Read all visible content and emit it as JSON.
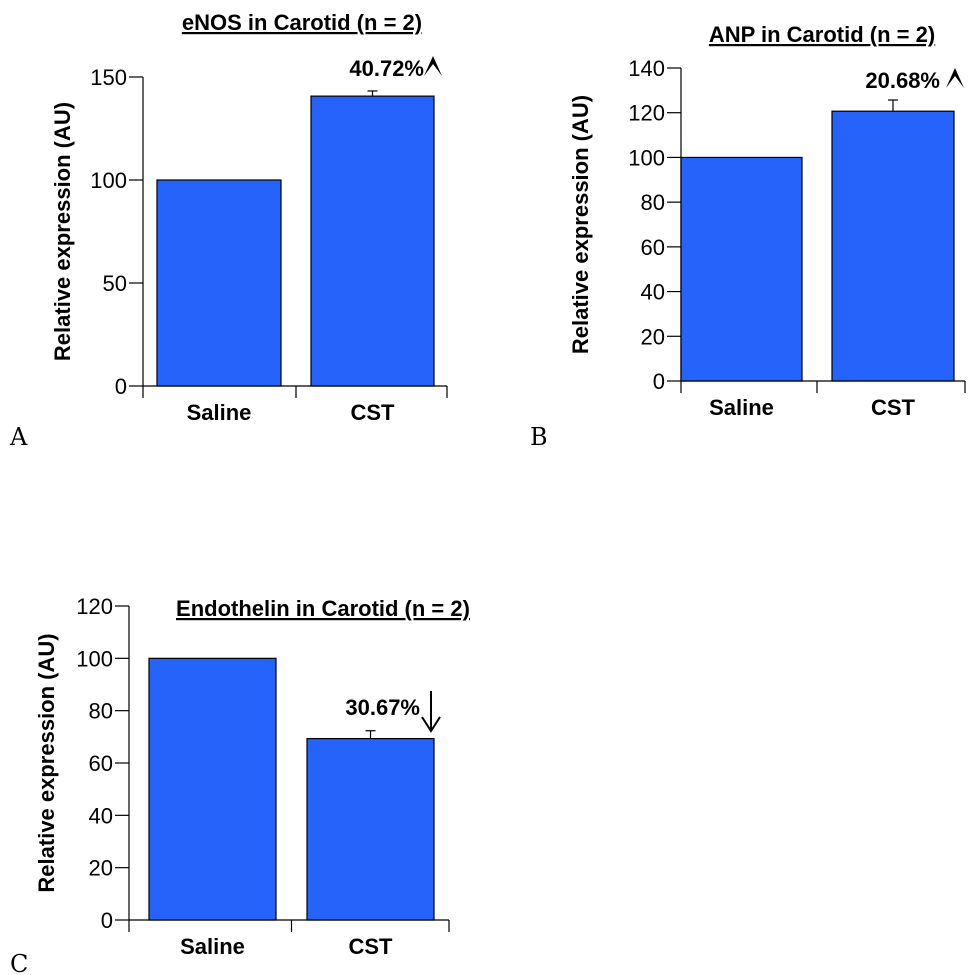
{
  "chart_data": [
    {
      "type": "bar",
      "panel": "A",
      "title": "eNOS in Carotid (n = 2)",
      "ylabel": "Relative expression (AU)",
      "xlabel": "",
      "categories": [
        "Saline",
        "CST"
      ],
      "values": [
        100,
        140.72
      ],
      "error": [
        0,
        2.5
      ],
      "ylim": [
        0,
        150
      ],
      "yticks": [
        0,
        50,
        100,
        150
      ],
      "annotation": {
        "text": "40.72%",
        "direction": "up"
      },
      "bar_color": "#2563fb",
      "grid": false
    },
    {
      "type": "bar",
      "panel": "B",
      "title": "ANP in Carotid (n = 2)",
      "ylabel": "Relative expression (AU)",
      "xlabel": "",
      "categories": [
        "Saline",
        "CST"
      ],
      "values": [
        100,
        120.68
      ],
      "error": [
        0,
        5
      ],
      "ylim": [
        0,
        140
      ],
      "yticks": [
        0,
        20,
        40,
        60,
        80,
        100,
        120,
        140
      ],
      "annotation": {
        "text": "20.68%",
        "direction": "up"
      },
      "bar_color": "#2563fb",
      "grid": false
    },
    {
      "type": "bar",
      "panel": "C",
      "title": "Endothelin in Carotid (n = 2)",
      "ylabel": "Relative expression (AU)",
      "xlabel": "",
      "categories": [
        "Saline",
        "CST"
      ],
      "values": [
        100,
        69.33
      ],
      "error": [
        0,
        3
      ],
      "ylim": [
        0,
        120
      ],
      "yticks": [
        0,
        20,
        40,
        60,
        80,
        100,
        120
      ],
      "annotation": {
        "text": "30.67%",
        "direction": "down"
      },
      "bar_color": "#2563fb",
      "grid": false
    }
  ]
}
